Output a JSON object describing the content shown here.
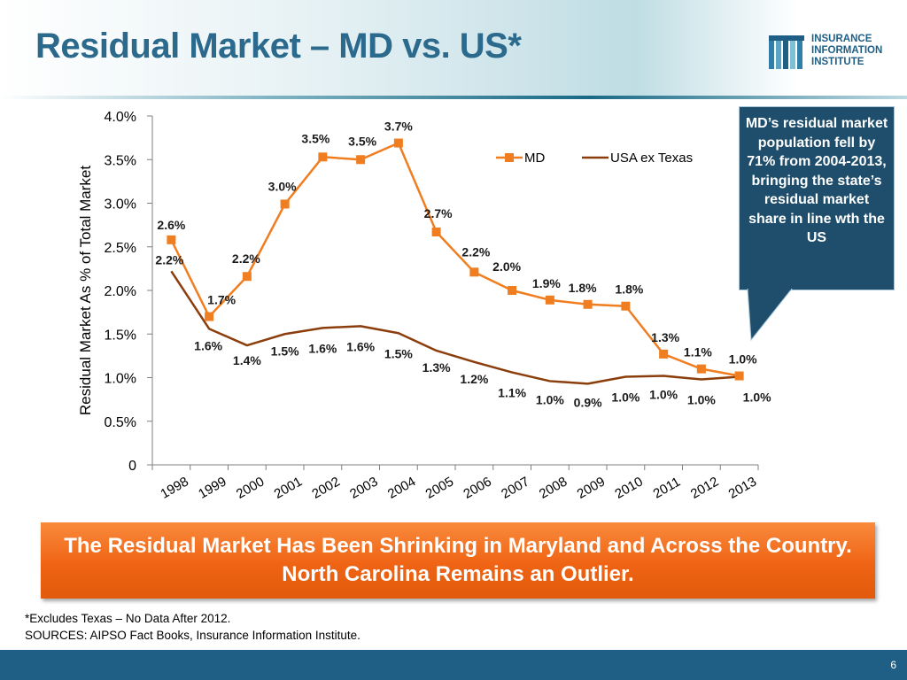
{
  "slide": {
    "title": "Residual Market – MD vs. US*",
    "logo_lines": [
      "INSURANCE",
      "INFORMATION",
      "INSTITUTE"
    ],
    "callout": "MD’s residual market population fell by 71% from 2004-2013, bringing the state’s residual market share in line wth the US",
    "banner": "The Residual Market Has Been Shrinking in Maryland and Across the Country. North Carolina Remains an Outlier.",
    "footnote": "*Excludes Texas – No Data After 2012.",
    "sources": "SOURCES: AIPSO Fact Books, Insurance Information Institute.",
    "page_number": "6",
    "colors": {
      "title": "#2b6a8c",
      "md_series": "#f07d1f",
      "us_series": "#8b3e0c",
      "banner": "#ef6414",
      "callout": "#1e4e6c",
      "footer": "#1f5f86"
    }
  },
  "chart_data": {
    "type": "line",
    "title": "",
    "xlabel": "",
    "ylabel": "Residual Market As % of Total Market",
    "ylim": [
      0,
      0.04
    ],
    "ytick_values": [
      0,
      0.005,
      0.01,
      0.015,
      0.02,
      0.025,
      0.03,
      0.035,
      0.04
    ],
    "ytick_labels": [
      "0",
      "0.5%",
      "1.0%",
      "1.5%",
      "2.0%",
      "2.5%",
      "3.0%",
      "3.5%",
      "4.0%"
    ],
    "categories": [
      "1998",
      "1999",
      "2000",
      "2001",
      "2002",
      "2003",
      "2004",
      "2005",
      "2006",
      "2007",
      "2008",
      "2009",
      "2010",
      "2011",
      "2012",
      "2013"
    ],
    "legend_position": "top-right",
    "series": [
      {
        "name": "MD",
        "marker": "square",
        "values": [
          0.0258,
          0.017,
          0.0216,
          0.0299,
          0.0353,
          0.035,
          0.0369,
          0.0267,
          0.0221,
          0.02,
          0.0189,
          0.0184,
          0.0182,
          0.0127,
          0.011,
          0.0102
        ],
        "labels": [
          "2.6%",
          "1.7%",
          "2.2%",
          "3.0%",
          "3.5%",
          "3.5%",
          "3.7%",
          "2.7%",
          "2.2%",
          "2.0%",
          "1.9%",
          "1.8%",
          "1.8%",
          "1.3%",
          "1.1%",
          "1.0%"
        ]
      },
      {
        "name": "USA ex Texas",
        "marker": "none",
        "values": [
          0.0222,
          0.0156,
          0.0137,
          0.015,
          0.0157,
          0.0159,
          0.0151,
          0.0131,
          0.0118,
          0.0106,
          0.0096,
          0.0093,
          0.0101,
          0.0102,
          0.0098,
          0.0101
        ],
        "labels": [
          "2.2%",
          "1.6%",
          "1.4%",
          "1.5%",
          "1.6%",
          "1.6%",
          "1.5%",
          "1.3%",
          "1.2%",
          "1.1%",
          "1.0%",
          "0.9%",
          "1.0%",
          "1.0%",
          "1.0%",
          "1.0%"
        ]
      }
    ]
  }
}
